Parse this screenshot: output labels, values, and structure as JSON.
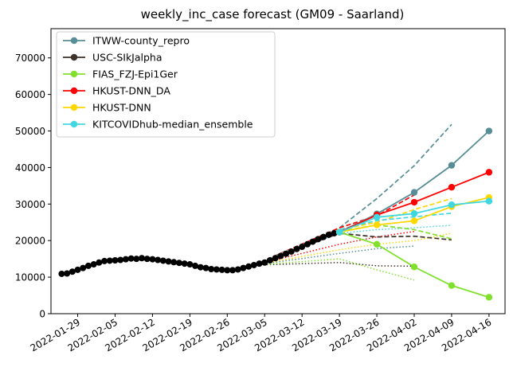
{
  "chart_data": {
    "type": "line",
    "title": "weekly_inc_case forecast (GM09 - Saarland)",
    "xlabel": "",
    "ylabel": "",
    "x_axis": {
      "type": "date",
      "range": [
        "2022-01-24",
        "2022-04-19"
      ],
      "ticks": [
        "2022-01-29",
        "2022-02-05",
        "2022-02-12",
        "2022-02-19",
        "2022-02-26",
        "2022-03-05",
        "2022-03-12",
        "2022-03-19",
        "2022-03-26",
        "2022-04-02",
        "2022-04-09",
        "2022-04-16"
      ]
    },
    "y_axis": {
      "range": [
        0,
        78000
      ],
      "ticks": [
        0,
        10000,
        20000,
        30000,
        40000,
        50000,
        60000,
        70000
      ]
    },
    "grid": false,
    "legend_position": "top-left",
    "truth": {
      "color": "#000000",
      "x": [
        "2022-01-26",
        "2022-01-27",
        "2022-01-28",
        "2022-01-29",
        "2022-01-30",
        "2022-01-31",
        "2022-02-01",
        "2022-02-02",
        "2022-02-03",
        "2022-02-04",
        "2022-02-05",
        "2022-02-06",
        "2022-02-07",
        "2022-02-08",
        "2022-02-09",
        "2022-02-10",
        "2022-02-11",
        "2022-02-12",
        "2022-02-13",
        "2022-02-14",
        "2022-02-15",
        "2022-02-16",
        "2022-02-17",
        "2022-02-18",
        "2022-02-19",
        "2022-02-20",
        "2022-02-21",
        "2022-02-22",
        "2022-02-23",
        "2022-02-24",
        "2022-02-25",
        "2022-02-26",
        "2022-02-27",
        "2022-02-28",
        "2022-03-01",
        "2022-03-02",
        "2022-03-03",
        "2022-03-04",
        "2022-03-05",
        "2022-03-06",
        "2022-03-07",
        "2022-03-08",
        "2022-03-09",
        "2022-03-10",
        "2022-03-11",
        "2022-03-12",
        "2022-03-13",
        "2022-03-14",
        "2022-03-15",
        "2022-03-16",
        "2022-03-17",
        "2022-03-18",
        "2022-03-19"
      ],
      "y": [
        10900,
        11000,
        11500,
        12000,
        12500,
        13100,
        13500,
        14000,
        14400,
        14500,
        14600,
        14700,
        14900,
        15100,
        15000,
        15200,
        15000,
        14900,
        14700,
        14500,
        14300,
        14100,
        13900,
        13700,
        13500,
        13100,
        12700,
        12500,
        12200,
        12100,
        12000,
        11900,
        11900,
        12100,
        12500,
        12900,
        13300,
        13700,
        14000,
        14600,
        15200,
        15800,
        16400,
        17000,
        17700,
        18300,
        19000,
        19700,
        20400,
        21000,
        21600,
        22000,
        22300
      ]
    },
    "series": [
      {
        "name": "ITWW-county_repro",
        "color": "#568d96",
        "x": [
          "2022-03-19",
          "2022-03-26",
          "2022-04-02",
          "2022-04-09",
          "2022-04-16"
        ],
        "y": [
          22300,
          27300,
          33200,
          40600,
          50000
        ],
        "dashed": {
          "x": [
            "2022-03-03",
            "2022-03-19",
            "2022-03-26",
            "2022-04-02",
            "2022-04-09"
          ],
          "y": [
            13300,
            23500,
            31500,
            40500,
            51800
          ]
        },
        "dotted": {
          "x": [
            "2022-03-03",
            "2022-03-19",
            "2022-03-26",
            "2022-04-02"
          ],
          "y": [
            13300,
            16500,
            17800,
            18500
          ]
        }
      },
      {
        "name": "USC-SIkJalpha",
        "color": "#3d3129",
        "x": [],
        "y": [],
        "dashed": {
          "x": [
            "2022-03-03",
            "2022-03-19",
            "2022-03-26",
            "2022-04-02",
            "2022-04-09"
          ],
          "y": [
            13300,
            22000,
            21000,
            21200,
            20200
          ]
        },
        "dotted": {
          "x": [
            "2022-03-03",
            "2022-03-19",
            "2022-03-26",
            "2022-04-02"
          ],
          "y": [
            13300,
            14000,
            13100,
            13000
          ]
        }
      },
      {
        "name": "FIAS_FZJ-Epi1Ger",
        "color": "#80e02c",
        "x": [
          "2022-03-19",
          "2022-03-26",
          "2022-04-02",
          "2022-04-09",
          "2022-04-16"
        ],
        "y": [
          22300,
          19000,
          12800,
          7700,
          4500
        ],
        "dashed": {
          "x": [
            "2022-03-03",
            "2022-03-19",
            "2022-03-26",
            "2022-04-02",
            "2022-04-09"
          ],
          "y": [
            13300,
            22500,
            24300,
            23000,
            20500
          ]
        },
        "dotted": {
          "x": [
            "2022-03-03",
            "2022-03-19",
            "2022-03-26",
            "2022-04-02"
          ],
          "y": [
            13300,
            15000,
            12000,
            9200
          ]
        }
      },
      {
        "name": "HKUST-DNN_DA",
        "color": "#ff0000",
        "x": [
          "2022-03-19",
          "2022-03-26",
          "2022-04-02",
          "2022-04-09",
          "2022-04-16"
        ],
        "y": [
          22300,
          27000,
          30500,
          34600,
          38700
        ],
        "dashed": {
          "x": [
            "2022-03-03",
            "2022-03-19",
            "2022-03-26",
            "2022-04-02"
          ],
          "y": [
            13300,
            23500,
            26800,
            32500
          ]
        },
        "dotted": {
          "x": [
            "2022-03-03",
            "2022-03-19",
            "2022-03-26",
            "2022-04-02"
          ],
          "y": [
            13300,
            19000,
            21000,
            22500
          ]
        }
      },
      {
        "name": "HKUST-DNN",
        "color": "#ffd700",
        "x": [
          "2022-03-19",
          "2022-03-26",
          "2022-04-02",
          "2022-04-09",
          "2022-04-16"
        ],
        "y": [
          22300,
          24300,
          25400,
          29300,
          31800
        ],
        "dashed": {
          "x": [
            "2022-03-03",
            "2022-03-19",
            "2022-03-26",
            "2022-04-02",
            "2022-04-09"
          ],
          "y": [
            13300,
            23000,
            25000,
            28500,
            31500
          ]
        },
        "dotted": {
          "x": [
            "2022-03-03",
            "2022-03-19",
            "2022-03-26",
            "2022-04-02",
            "2022-04-09"
          ],
          "y": [
            13300,
            17500,
            19000,
            20000,
            22000
          ]
        }
      },
      {
        "name": "KITCOVIDhub-median_ensemble",
        "color": "#40d8e0",
        "x": [
          "2022-03-19",
          "2022-03-26",
          "2022-04-02",
          "2022-04-09",
          "2022-04-16"
        ],
        "y": [
          22300,
          26400,
          27400,
          29800,
          30800
        ],
        "dashed": {
          "x": [
            "2022-03-03",
            "2022-03-19",
            "2022-03-26",
            "2022-04-02",
            "2022-04-09"
          ],
          "y": [
            13300,
            23000,
            25500,
            26500,
            27500
          ]
        },
        "dotted": {
          "x": [
            "2022-03-03",
            "2022-03-19",
            "2022-03-26",
            "2022-04-02",
            "2022-04-09"
          ],
          "y": [
            13300,
            22000,
            23000,
            23500,
            24200
          ]
        }
      }
    ]
  }
}
